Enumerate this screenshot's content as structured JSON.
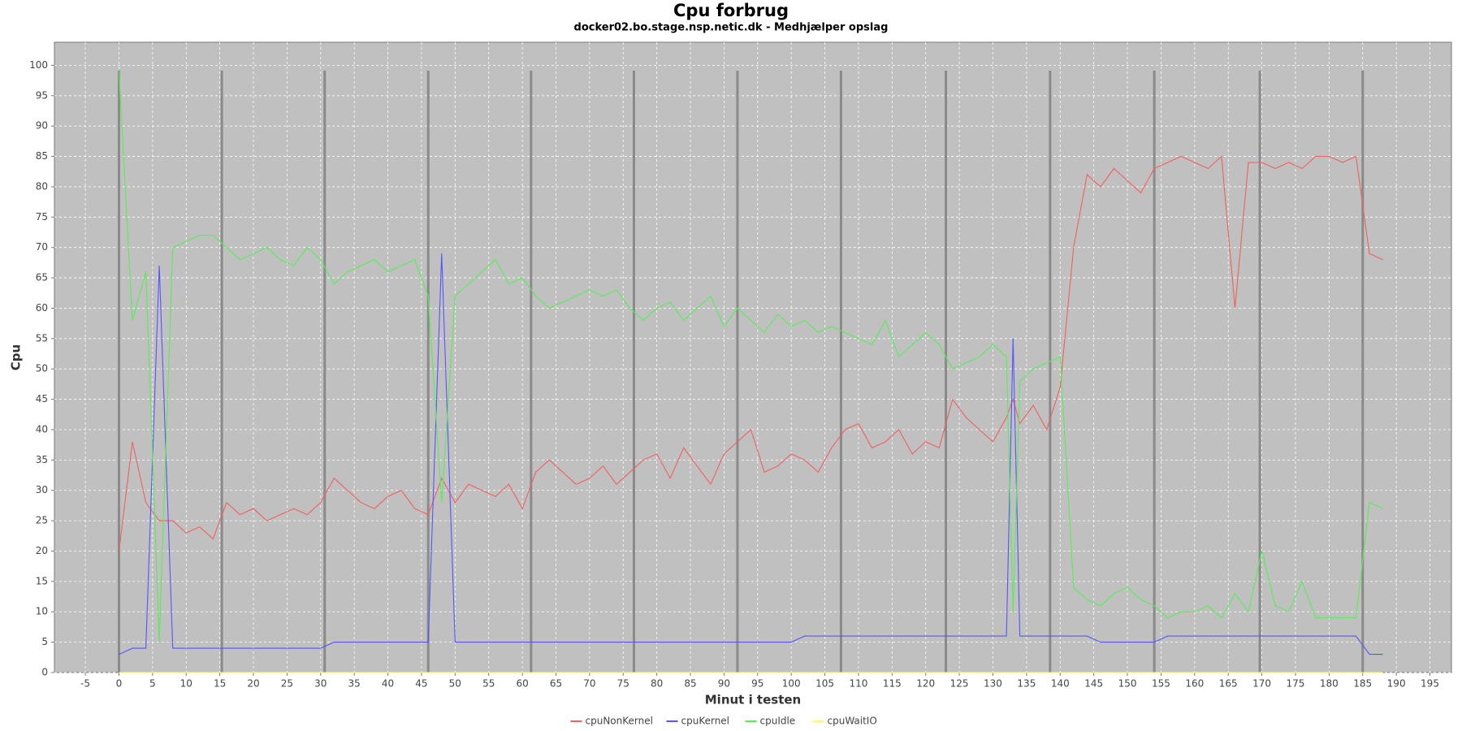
{
  "chart_data": {
    "type": "line",
    "title": "Cpu forbrug",
    "subtitle": "docker02.bo.stage.nsp.netic.dk - Medhjælper opslag",
    "x_label": "Minut i testen",
    "y_label": "Cpu",
    "x": [
      0,
      2,
      4,
      6,
      8,
      10,
      12,
      14,
      16,
      18,
      20,
      22,
      24,
      26,
      28,
      30,
      32,
      34,
      36,
      38,
      40,
      42,
      44,
      46,
      48,
      50,
      52,
      54,
      56,
      58,
      60,
      62,
      64,
      66,
      68,
      70,
      72,
      74,
      76,
      78,
      80,
      82,
      84,
      86,
      88,
      90,
      92,
      94,
      96,
      98,
      100,
      102,
      104,
      106,
      108,
      110,
      112,
      114,
      116,
      118,
      120,
      122,
      124,
      126,
      128,
      130,
      132,
      133,
      134,
      136,
      138,
      140,
      142,
      144,
      146,
      148,
      150,
      152,
      154,
      156,
      158,
      160,
      162,
      164,
      166,
      168,
      170,
      172,
      174,
      176,
      178,
      180,
      182,
      184,
      186,
      188
    ],
    "series": [
      {
        "name": "cpuNonKernel",
        "color": "#f25f5f",
        "values": [
          20,
          38,
          28,
          25,
          25,
          23,
          24,
          22,
          28,
          26,
          27,
          25,
          26,
          27,
          26,
          28,
          32,
          30,
          28,
          27,
          29,
          30,
          27,
          26,
          32,
          28,
          31,
          30,
          29,
          31,
          27,
          33,
          35,
          33,
          31,
          32,
          34,
          31,
          33,
          35,
          36,
          32,
          37,
          34,
          31,
          36,
          38,
          40,
          33,
          34,
          36,
          35,
          33,
          37,
          40,
          41,
          37,
          38,
          40,
          36,
          38,
          37,
          45,
          42,
          40,
          38,
          42,
          45,
          41,
          44,
          40,
          47,
          70,
          82,
          80,
          83,
          81,
          79,
          83,
          84,
          85,
          84,
          83,
          85,
          60,
          84,
          84,
          83,
          84,
          83,
          85,
          85,
          84,
          85,
          69,
          68
        ]
      },
      {
        "name": "cpuKernel",
        "color": "#5555ff",
        "values": [
          3,
          4,
          4,
          67,
          4,
          4,
          4,
          4,
          4,
          4,
          4,
          4,
          4,
          4,
          4,
          4,
          5,
          5,
          5,
          5,
          5,
          5,
          5,
          5,
          69,
          5,
          5,
          5,
          5,
          5,
          5,
          5,
          5,
          5,
          5,
          5,
          5,
          5,
          5,
          5,
          5,
          5,
          5,
          5,
          5,
          5,
          5,
          5,
          5,
          5,
          5,
          6,
          6,
          6,
          6,
          6,
          6,
          6,
          6,
          6,
          6,
          6,
          6,
          6,
          6,
          6,
          6,
          55,
          6,
          6,
          6,
          6,
          6,
          6,
          5,
          5,
          5,
          5,
          5,
          6,
          6,
          6,
          6,
          6,
          6,
          6,
          6,
          6,
          6,
          6,
          6,
          6,
          6,
          6,
          3,
          3
        ]
      },
      {
        "name": "cpuIdle",
        "color": "#55ee55",
        "values": [
          99,
          58,
          66,
          5,
          70,
          71,
          72,
          72,
          70,
          68,
          69,
          70,
          68,
          67,
          70,
          68,
          64,
          66,
          67,
          68,
          66,
          67,
          68,
          62,
          28,
          62,
          64,
          66,
          68,
          64,
          65,
          62,
          60,
          61,
          62,
          63,
          62,
          63,
          60,
          58,
          60,
          61,
          58,
          60,
          62,
          57,
          60,
          58,
          56,
          59,
          57,
          58,
          56,
          57,
          56,
          55,
          54,
          58,
          52,
          54,
          56,
          54,
          50,
          51,
          52,
          54,
          52,
          10,
          48,
          50,
          51,
          52,
          14,
          12,
          11,
          13,
          14,
          12,
          11,
          9,
          10,
          10,
          11,
          9,
          13,
          10,
          20,
          11,
          10,
          15,
          9,
          9,
          9,
          9,
          28,
          27
        ]
      },
      {
        "name": "cpuWaitIO",
        "color": "#ffff55",
        "values": [
          0,
          0,
          0,
          0,
          0,
          0,
          0,
          0,
          0,
          0,
          0,
          0,
          0,
          0,
          0,
          0,
          0,
          0,
          0,
          0,
          0,
          0,
          0,
          0,
          0,
          0,
          0,
          0,
          0,
          0,
          0,
          0,
          0,
          0,
          0,
          0,
          0,
          0,
          0,
          0,
          0,
          0,
          0,
          0,
          0,
          0,
          0,
          0,
          0,
          0,
          0,
          0,
          0,
          0,
          0,
          0,
          0,
          0,
          0,
          0,
          0,
          0,
          0,
          0,
          0,
          0,
          0,
          0,
          0,
          0,
          0,
          0,
          0,
          0,
          0,
          0,
          0,
          0,
          0,
          0,
          0,
          0,
          0,
          0,
          0,
          0,
          0,
          0,
          0,
          0,
          0,
          0,
          0,
          0,
          0,
          0
        ]
      }
    ],
    "markers": [
      0,
      15.3,
      30.6,
      46,
      61.3,
      76.6,
      92,
      107.4,
      123,
      138.5,
      154,
      169.7,
      185
    ],
    "marker_color": "#8a8a8a",
    "background": "#c0c0c0",
    "xlim": [
      -9.6,
      198.2
    ],
    "ylim": [
      0,
      103.8
    ],
    "xticks": [
      -5,
      0,
      5,
      10,
      15,
      20,
      25,
      30,
      35,
      40,
      45,
      50,
      55,
      60,
      65,
      70,
      75,
      80,
      85,
      90,
      95,
      100,
      105,
      110,
      115,
      120,
      125,
      130,
      135,
      140,
      145,
      150,
      155,
      160,
      165,
      170,
      175,
      180,
      185,
      190,
      195
    ],
    "yticks": [
      0,
      5,
      10,
      15,
      20,
      25,
      30,
      35,
      40,
      45,
      50,
      55,
      60,
      65,
      70,
      75,
      80,
      85,
      90,
      95,
      100
    ],
    "grid": true,
    "legend": "bottom"
  }
}
